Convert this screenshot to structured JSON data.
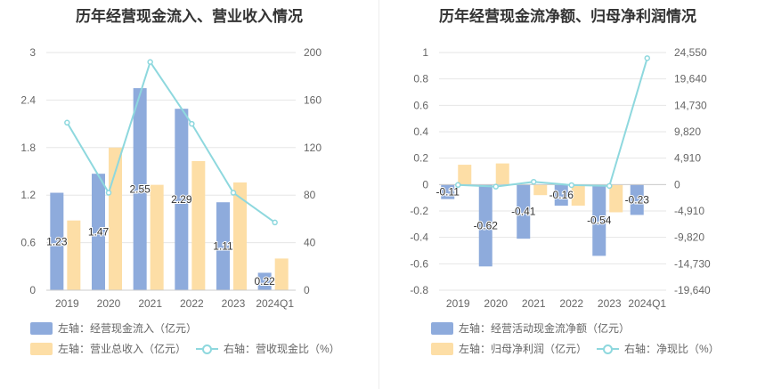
{
  "charts": [
    {
      "title": "历年经营现金流入、营业收入情况",
      "legend": [
        {
          "label": "左轴：经营现金流入（亿元）",
          "color": "#8eabdc",
          "kind": "bar"
        },
        {
          "label": "左轴：营业总收入（亿元）",
          "color": "#fddea6",
          "kind": "bar"
        },
        {
          "label": "右轴：营收现金比（%）",
          "color": "#8ed8de",
          "kind": "line"
        }
      ]
    },
    {
      "title": "历年经营现金流净额、归母净利润情况",
      "legend": [
        {
          "label": "左轴：经营活动现金流净额（亿元）",
          "color": "#8eabdc",
          "kind": "bar"
        },
        {
          "label": "左轴：归母净利润（亿元）",
          "color": "#fddea6",
          "kind": "bar"
        },
        {
          "label": "右轴：净现比（%）",
          "color": "#8ed8de",
          "kind": "line"
        }
      ]
    }
  ],
  "chart_data": [
    {
      "type": "bar",
      "title": "历年经营现金流入、营业收入情况",
      "categories": [
        "2019",
        "2020",
        "2021",
        "2022",
        "2023",
        "2024Q1"
      ],
      "series": [
        {
          "name": "左轴：经营现金流入（亿元）",
          "axis": "left",
          "type": "bar",
          "color": "#8eabdc",
          "values": [
            1.23,
            1.47,
            2.55,
            2.29,
            1.11,
            0.22
          ],
          "labels": [
            "1.23",
            "1.47",
            "2.55",
            "2.29",
            "1.11",
            "0.22"
          ]
        },
        {
          "name": "左轴：营业总收入（亿元）",
          "axis": "left",
          "type": "bar",
          "color": "#fddea6",
          "values": [
            0.88,
            1.8,
            1.33,
            1.63,
            1.36,
            0.4
          ]
        },
        {
          "name": "右轴：营收现金比（%）",
          "axis": "right",
          "type": "line",
          "color": "#8ed8de",
          "values": [
            141,
            82,
            192,
            140,
            82,
            57
          ]
        }
      ],
      "left_axis": {
        "min": 0,
        "max": 3,
        "ticks": [
          0,
          0.6,
          1.2,
          1.8,
          2.4,
          3
        ],
        "tick_labels": [
          "0",
          "0.6",
          "1.2",
          "1.8",
          "2.4",
          "3"
        ]
      },
      "right_axis": {
        "min": 0,
        "max": 200,
        "ticks": [
          0,
          40,
          80,
          120,
          160,
          200
        ],
        "tick_labels": [
          "0",
          "40",
          "80",
          "120",
          "160",
          "200"
        ]
      },
      "grid": true,
      "legend_position": "bottom"
    },
    {
      "type": "bar",
      "title": "历年经营现金流净额、归母净利润情况",
      "categories": [
        "2019",
        "2020",
        "2021",
        "2022",
        "2023",
        "2024Q1"
      ],
      "series": [
        {
          "name": "左轴：经营活动现金流净额（亿元）",
          "axis": "left",
          "type": "bar",
          "color": "#8eabdc",
          "values": [
            -0.11,
            -0.62,
            -0.41,
            -0.16,
            -0.54,
            -0.23
          ],
          "labels": [
            "-0.11",
            "-0.62",
            "-0.41",
            "-0.16",
            "-0.54",
            "-0.23"
          ]
        },
        {
          "name": "左轴：归母净利润（亿元）",
          "axis": "left",
          "type": "bar",
          "color": "#fddea6",
          "values": [
            0.15,
            0.16,
            -0.08,
            -0.16,
            -0.21,
            0.0
          ]
        },
        {
          "name": "右轴：净现比（%）",
          "axis": "right",
          "type": "line",
          "color": "#8ed8de",
          "values": [
            -73,
            -388,
            513,
            -100,
            -257,
            23500
          ]
        }
      ],
      "left_axis": {
        "min": -0.8,
        "max": 1,
        "ticks": [
          -0.8,
          -0.6,
          -0.4,
          -0.2,
          0,
          0.2,
          0.4,
          0.6,
          0.8,
          1
        ],
        "tick_labels": [
          "-0.8",
          "-0.6",
          "-0.4",
          "-0.2",
          "0",
          "0.2",
          "0.4",
          "0.6",
          "0.8",
          "1"
        ]
      },
      "right_axis": {
        "min": -19640,
        "max": 24550,
        "ticks": [
          -19640,
          -14730,
          -9820,
          -4910,
          0,
          4910,
          9820,
          14730,
          19640,
          24550
        ],
        "tick_labels": [
          "-19,640",
          "-14,730",
          "-9,820",
          "-4,910",
          "0",
          "4,910",
          "9,820",
          "14,730",
          "19,640",
          "24,550"
        ]
      },
      "grid": true,
      "legend_position": "bottom"
    }
  ]
}
